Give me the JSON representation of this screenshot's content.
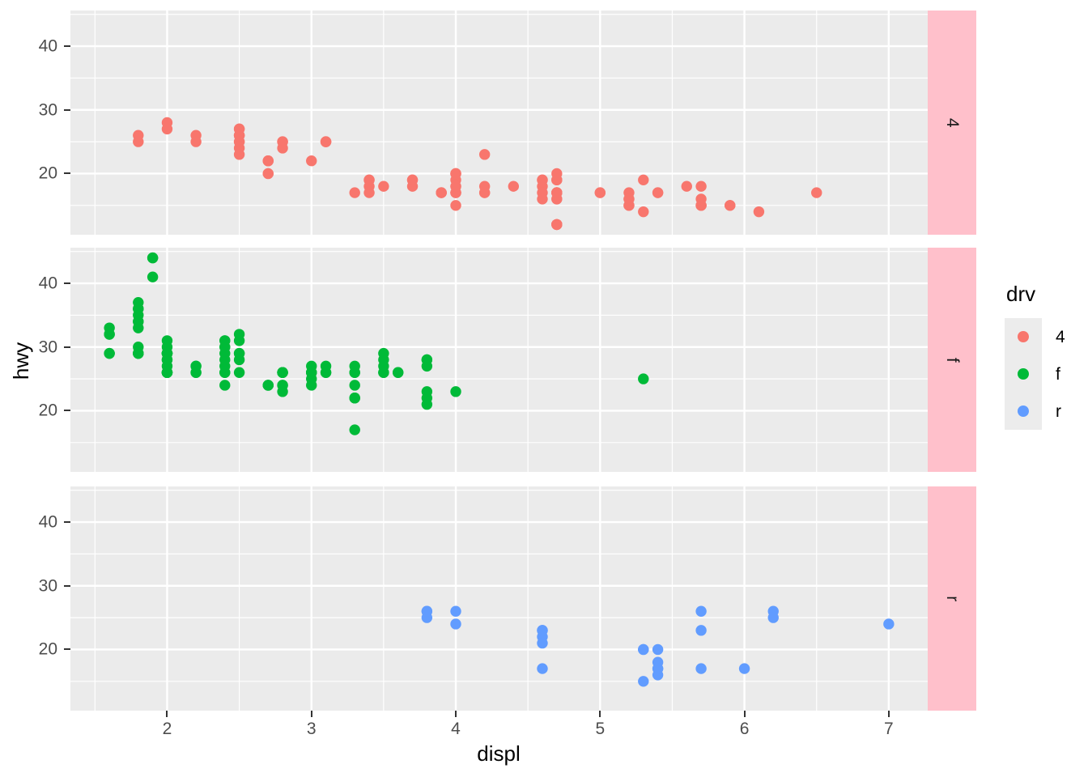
{
  "figure": {
    "background": "#FFFFFF"
  },
  "style": {
    "panel_bg": "#EBEBEB",
    "grid_color": "#FFFFFF",
    "strip_bg": "#FFC0CB",
    "strip_text_color": "#1A1A1A",
    "axis_text_color": "#4D4D4D",
    "tick_mark_color": "#333333",
    "legend_key_bg": "#ECECEC"
  },
  "chart_data": {
    "type": "scatter",
    "title": "",
    "xlabel": "displ",
    "ylabel": "hwy",
    "facet_variable": "drv",
    "grid": "on",
    "xlim": [
      1.33,
      7.27
    ],
    "ylim": [
      10.4,
      45.6
    ],
    "x_ticks": [
      2,
      3,
      4,
      5,
      6,
      7
    ],
    "y_ticks": [
      20,
      30,
      40
    ],
    "x_minor_ticks": [
      1.5,
      2.5,
      3.5,
      4.5,
      5.5,
      6.5
    ],
    "y_minor_ticks": [
      15,
      25,
      35,
      45
    ],
    "point_radius": 6.7,
    "legend": {
      "title": "drv",
      "position": "right",
      "entries": [
        {
          "label": "4",
          "color": "#F8766D"
        },
        {
          "label": "f",
          "color": "#00BA38"
        },
        {
          "label": "r",
          "color": "#619CFF"
        }
      ]
    },
    "facets": [
      {
        "label": "4",
        "color": "#F8766D",
        "points": [
          [
            1.8,
            26
          ],
          [
            1.8,
            25
          ],
          [
            2.0,
            28
          ],
          [
            2.0,
            27
          ],
          [
            2.2,
            26
          ],
          [
            2.2,
            25
          ],
          [
            2.5,
            26
          ],
          [
            2.5,
            24
          ],
          [
            2.5,
            26
          ],
          [
            2.5,
            23
          ],
          [
            2.5,
            25
          ],
          [
            2.5,
            27
          ],
          [
            2.5,
            26
          ],
          [
            2.5,
            25
          ],
          [
            2.5,
            27
          ],
          [
            2.7,
            20
          ],
          [
            2.7,
            20
          ],
          [
            2.7,
            22
          ],
          [
            2.7,
            22
          ],
          [
            2.7,
            22
          ],
          [
            2.8,
            25
          ],
          [
            2.8,
            25
          ],
          [
            2.8,
            24
          ],
          [
            3.0,
            22
          ],
          [
            3.1,
            25
          ],
          [
            3.1,
            25
          ],
          [
            3.1,
            25
          ],
          [
            3.3,
            17
          ],
          [
            3.4,
            19
          ],
          [
            3.4,
            19
          ],
          [
            3.4,
            18
          ],
          [
            3.4,
            17
          ],
          [
            3.5,
            18
          ],
          [
            3.7,
            19
          ],
          [
            3.7,
            18
          ],
          [
            3.7,
            19
          ],
          [
            3.9,
            17
          ],
          [
            3.9,
            17
          ],
          [
            3.9,
            17
          ],
          [
            4.0,
            17
          ],
          [
            4.0,
            17
          ],
          [
            4.0,
            17
          ],
          [
            4.0,
            19
          ],
          [
            4.0,
            18
          ],
          [
            4.0,
            20
          ],
          [
            4.0,
            20
          ],
          [
            4.0,
            15
          ],
          [
            4.0,
            18
          ],
          [
            4.0,
            20
          ],
          [
            4.2,
            23
          ],
          [
            4.2,
            17
          ],
          [
            4.2,
            17
          ],
          [
            4.2,
            18
          ],
          [
            4.4,
            18
          ],
          [
            4.6,
            19
          ],
          [
            4.6,
            19
          ],
          [
            4.6,
            18
          ],
          [
            4.6,
            17
          ],
          [
            4.6,
            16
          ],
          [
            4.7,
            19
          ],
          [
            4.7,
            19
          ],
          [
            4.7,
            12
          ],
          [
            4.7,
            17
          ],
          [
            4.7,
            17
          ],
          [
            4.7,
            12
          ],
          [
            4.7,
            16
          ],
          [
            4.7,
            17
          ],
          [
            4.7,
            17
          ],
          [
            4.7,
            12
          ],
          [
            4.7,
            16
          ],
          [
            4.7,
            12
          ],
          [
            4.7,
            17
          ],
          [
            4.7,
            19
          ],
          [
            4.7,
            12
          ],
          [
            4.7,
            20
          ],
          [
            4.7,
            17
          ],
          [
            5.0,
            17
          ],
          [
            5.0,
            17
          ],
          [
            5.2,
            17
          ],
          [
            5.2,
            15
          ],
          [
            5.2,
            16
          ],
          [
            5.2,
            15
          ],
          [
            5.2,
            16
          ],
          [
            5.3,
            14
          ],
          [
            5.3,
            19
          ],
          [
            5.4,
            17
          ],
          [
            5.4,
            17
          ],
          [
            5.6,
            18
          ],
          [
            5.7,
            15
          ],
          [
            5.7,
            16
          ],
          [
            5.7,
            15
          ],
          [
            5.7,
            18
          ],
          [
            5.7,
            15
          ],
          [
            5.9,
            15
          ],
          [
            5.9,
            15
          ],
          [
            6.1,
            14
          ],
          [
            6.5,
            17
          ]
        ]
      },
      {
        "label": "f",
        "color": "#00BA38",
        "points": [
          [
            1.6,
            33
          ],
          [
            1.6,
            32
          ],
          [
            1.6,
            32
          ],
          [
            1.6,
            29
          ],
          [
            1.6,
            29
          ],
          [
            1.8,
            36
          ],
          [
            1.8,
            36
          ],
          [
            1.8,
            34
          ],
          [
            1.8,
            30
          ],
          [
            1.8,
            33
          ],
          [
            1.8,
            34
          ],
          [
            1.8,
            35
          ],
          [
            1.8,
            37
          ],
          [
            1.8,
            29
          ],
          [
            1.8,
            29
          ],
          [
            1.8,
            29
          ],
          [
            1.8,
            29
          ],
          [
            1.9,
            44
          ],
          [
            1.9,
            44
          ],
          [
            1.9,
            41
          ],
          [
            2.0,
            31
          ],
          [
            2.0,
            30
          ],
          [
            2.0,
            29
          ],
          [
            2.0,
            29
          ],
          [
            2.0,
            29
          ],
          [
            2.0,
            29
          ],
          [
            2.0,
            29
          ],
          [
            2.0,
            26
          ],
          [
            2.0,
            26
          ],
          [
            2.0,
            29
          ],
          [
            2.0,
            26
          ],
          [
            2.0,
            26
          ],
          [
            2.0,
            27
          ],
          [
            2.0,
            26
          ],
          [
            2.0,
            26
          ],
          [
            2.0,
            28
          ],
          [
            2.0,
            28
          ],
          [
            2.2,
            26
          ],
          [
            2.2,
            27
          ],
          [
            2.2,
            26
          ],
          [
            2.2,
            27
          ],
          [
            2.4,
            30
          ],
          [
            2.4,
            29
          ],
          [
            2.4,
            24
          ],
          [
            2.4,
            27
          ],
          [
            2.4,
            26
          ],
          [
            2.4,
            28
          ],
          [
            2.4,
            30
          ],
          [
            2.4,
            31
          ],
          [
            2.4,
            31
          ],
          [
            2.4,
            26
          ],
          [
            2.5,
            32
          ],
          [
            2.5,
            31
          ],
          [
            2.5,
            29
          ],
          [
            2.5,
            29
          ],
          [
            2.5,
            28
          ],
          [
            2.5,
            26
          ],
          [
            2.7,
            24
          ],
          [
            2.7,
            24
          ],
          [
            2.7,
            24
          ],
          [
            2.8,
            26
          ],
          [
            2.8,
            26
          ],
          [
            2.8,
            26
          ],
          [
            2.8,
            26
          ],
          [
            2.8,
            24
          ],
          [
            2.8,
            24
          ],
          [
            2.8,
            23
          ],
          [
            3.0,
            24
          ],
          [
            3.0,
            26
          ],
          [
            3.0,
            25
          ],
          [
            3.0,
            26
          ],
          [
            3.0,
            26
          ],
          [
            3.0,
            26
          ],
          [
            3.0,
            27
          ],
          [
            3.1,
            27
          ],
          [
            3.1,
            26
          ],
          [
            3.1,
            26
          ],
          [
            3.3,
            24
          ],
          [
            3.3,
            22
          ],
          [
            3.3,
            22
          ],
          [
            3.3,
            22
          ],
          [
            3.3,
            17
          ],
          [
            3.3,
            26
          ],
          [
            3.3,
            26
          ],
          [
            3.3,
            27
          ],
          [
            3.5,
            28
          ],
          [
            3.5,
            26
          ],
          [
            3.5,
            26
          ],
          [
            3.5,
            27
          ],
          [
            3.5,
            29
          ],
          [
            3.6,
            26
          ],
          [
            3.6,
            26
          ],
          [
            3.8,
            28
          ],
          [
            3.8,
            28
          ],
          [
            3.8,
            27
          ],
          [
            3.8,
            23
          ],
          [
            3.8,
            22
          ],
          [
            3.8,
            21
          ],
          [
            4.0,
            23
          ],
          [
            5.3,
            25
          ]
        ]
      },
      {
        "label": "r",
        "color": "#619CFF",
        "points": [
          [
            3.8,
            26
          ],
          [
            3.8,
            25
          ],
          [
            3.8,
            26
          ],
          [
            4.0,
            26
          ],
          [
            4.0,
            24
          ],
          [
            4.6,
            23
          ],
          [
            4.6,
            22
          ],
          [
            4.6,
            21
          ],
          [
            4.6,
            23
          ],
          [
            4.6,
            17
          ],
          [
            5.3,
            20
          ],
          [
            5.3,
            20
          ],
          [
            5.3,
            15
          ],
          [
            5.4,
            20
          ],
          [
            5.4,
            18
          ],
          [
            5.4,
            17
          ],
          [
            5.4,
            16
          ],
          [
            5.4,
            17
          ],
          [
            5.7,
            26
          ],
          [
            5.7,
            23
          ],
          [
            5.7,
            17
          ],
          [
            6.0,
            17
          ],
          [
            6.2,
            26
          ],
          [
            6.2,
            25
          ],
          [
            7.0,
            24
          ]
        ]
      }
    ]
  }
}
